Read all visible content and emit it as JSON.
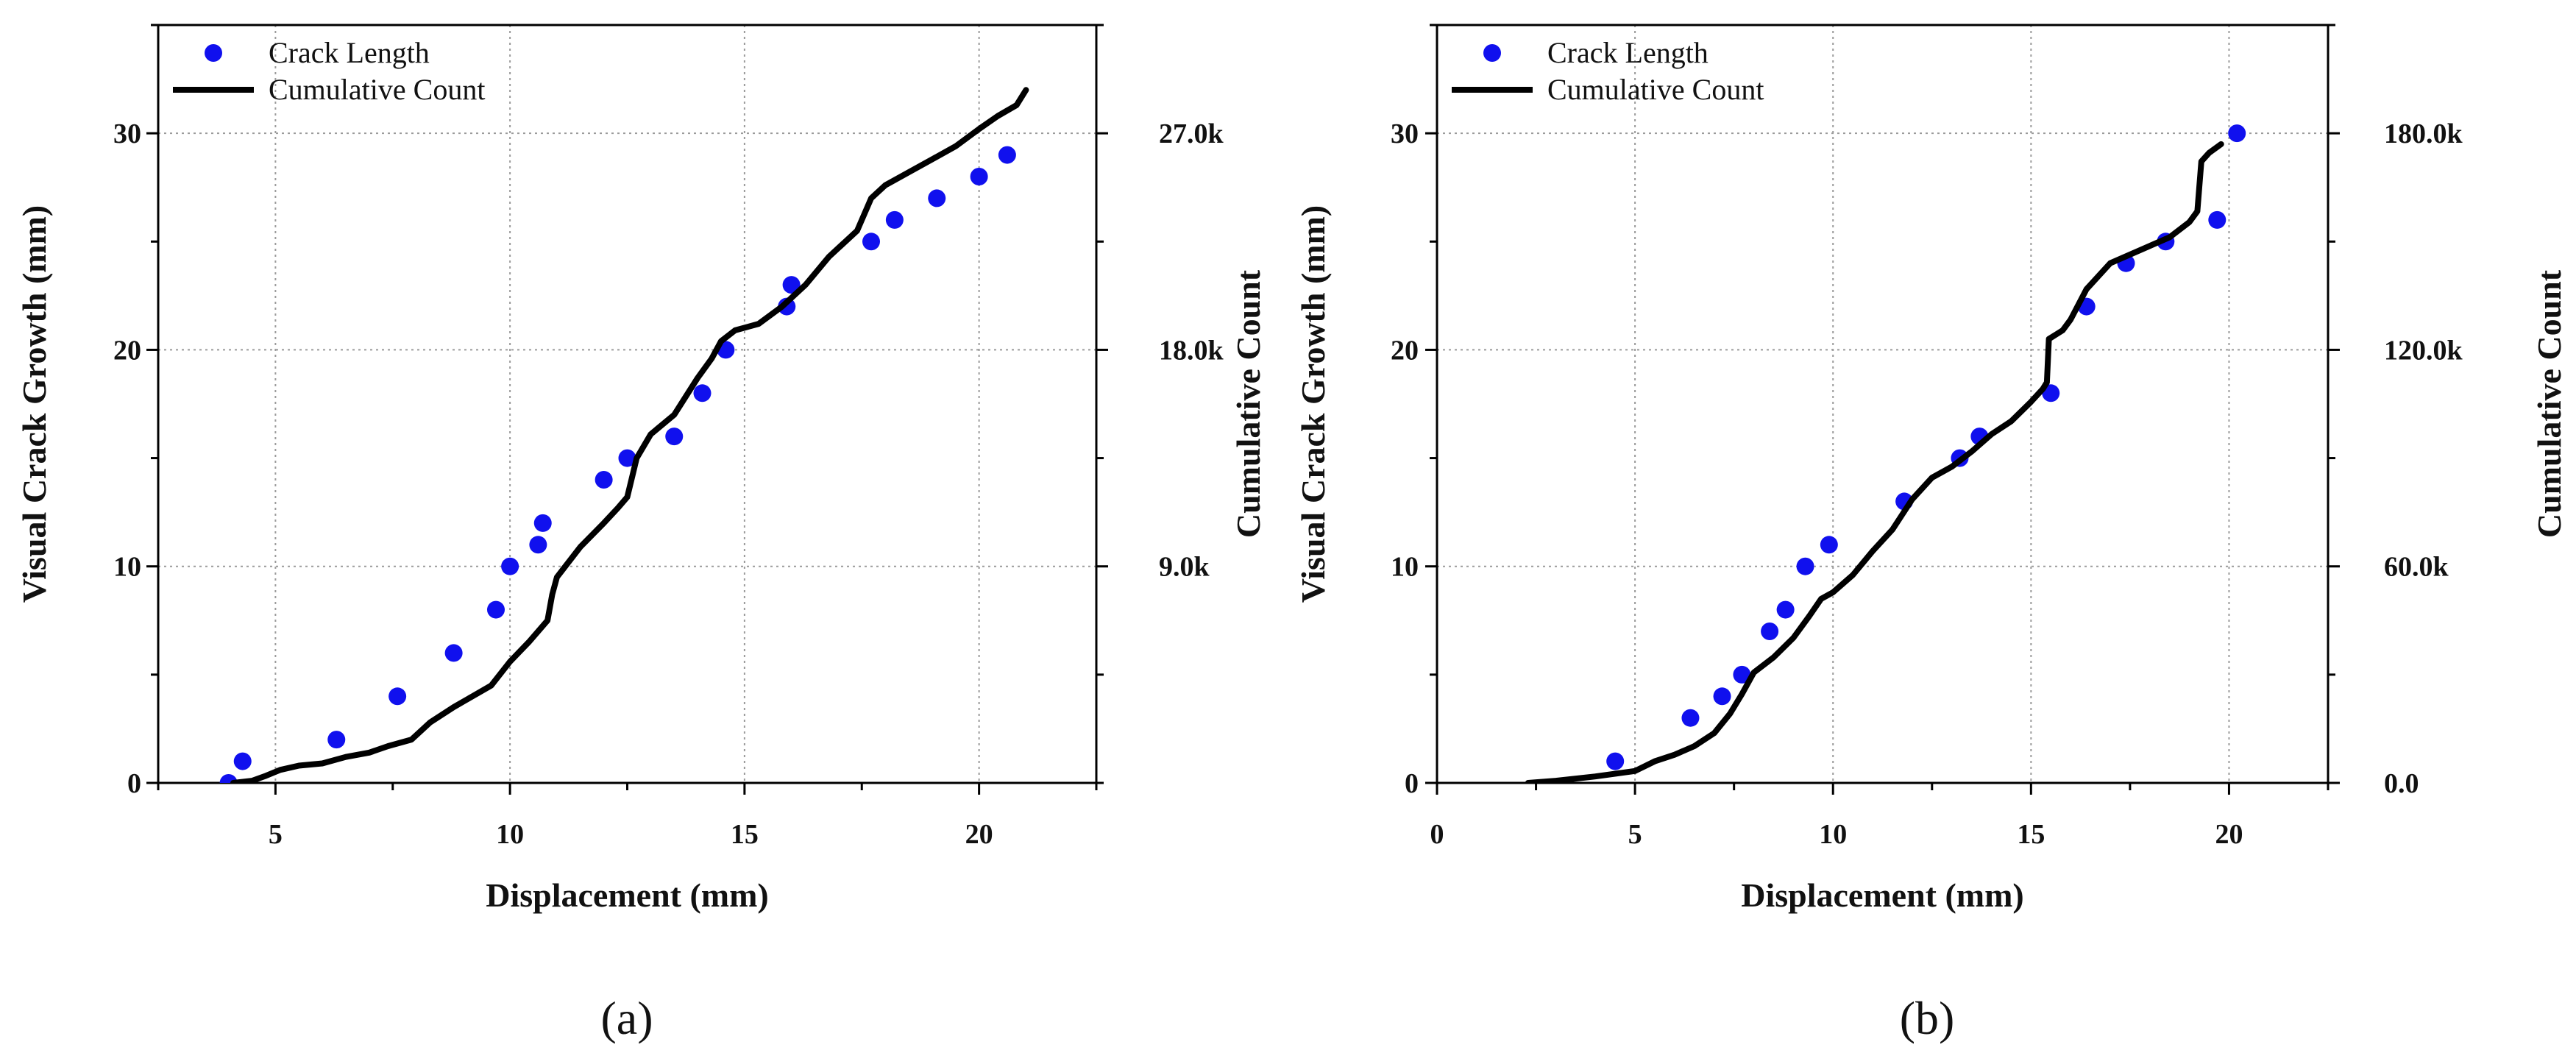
{
  "chart_data": [
    {
      "type": "scatter+line",
      "panel_label": "(a)",
      "xlabel": "Displacement (mm)",
      "ylabel": "Visual Crack Growth (mm)",
      "y2label": "Cumulative Count",
      "xlim": [
        2.5,
        22.5
      ],
      "ylim": [
        0,
        35
      ],
      "y2lim": [
        0,
        31500
      ],
      "xticks": [
        5,
        10,
        15,
        20
      ],
      "yticks": [
        0,
        10,
        20,
        30
      ],
      "y2ticks": [
        9000,
        18000,
        27000
      ],
      "y2tick_labels": [
        "9.0k",
        "18.0k",
        "27.0k"
      ],
      "grid": true,
      "legend_position": "top-left",
      "legend": [
        "Crack Length",
        "Cumulative Count"
      ],
      "series": [
        {
          "name": "Crack Length",
          "style": "scatter",
          "color": "#1010ee",
          "axis": "left",
          "x": [
            4.0,
            4.3,
            6.3,
            7.6,
            8.8,
            9.7,
            10.0,
            10.6,
            10.7,
            12.0,
            12.5,
            13.5,
            14.1,
            14.6,
            15.9,
            16.0,
            17.7,
            18.2,
            19.1,
            20.0,
            20.6
          ],
          "y": [
            0,
            1,
            2,
            4,
            6,
            8,
            10,
            11,
            12,
            14,
            15,
            16,
            18,
            20,
            22,
            23,
            25,
            26,
            27,
            28,
            29
          ]
        },
        {
          "name": "Cumulative Count",
          "style": "line",
          "color": "#000000",
          "axis": "right",
          "x": [
            4.1,
            4.5,
            4.8,
            5.1,
            5.5,
            6.0,
            6.5,
            7.0,
            7.4,
            7.9,
            8.3,
            8.8,
            9.2,
            9.6,
            10.0,
            10.4,
            10.8,
            10.9,
            11.0,
            11.5,
            12.0,
            12.3,
            12.5,
            12.7,
            13.0,
            13.5,
            14.0,
            14.3,
            14.5,
            14.8,
            15.3,
            15.8,
            16.3,
            16.8,
            17.4,
            17.7,
            18.0,
            18.5,
            19.0,
            19.5,
            20.0,
            20.4,
            20.8,
            21.0
          ],
          "y": [
            0,
            90,
            300,
            540,
            720,
            810,
            1080,
            1260,
            1530,
            1800,
            2520,
            3150,
            3600,
            4050,
            5040,
            5850,
            6750,
            7830,
            8550,
            9810,
            10800,
            11430,
            11880,
            13500,
            14490,
            15300,
            16830,
            17640,
            18360,
            18810,
            19080,
            19800,
            20700,
            21870,
            22950,
            24300,
            24840,
            25380,
            25920,
            26460,
            27180,
            27720,
            28170,
            28800
          ]
        }
      ]
    },
    {
      "type": "scatter+line",
      "panel_label": "(b)",
      "xlabel": "Displacement (mm)",
      "ylabel": "Visual Crack Growth (mm)",
      "y2label": "Cumulative Count",
      "xlim": [
        0,
        22.5
      ],
      "ylim": [
        0,
        35
      ],
      "y2lim": [
        0,
        210000
      ],
      "xticks": [
        0,
        5,
        10,
        15,
        20
      ],
      "yticks": [
        0,
        10,
        20,
        30
      ],
      "y2ticks": [
        0,
        60000,
        120000,
        180000
      ],
      "y2tick_labels": [
        "0.0",
        "60.0k",
        "120.0k",
        "180.0k"
      ],
      "grid": true,
      "legend_position": "top-left",
      "legend": [
        "Crack Length",
        "Cumulative Count"
      ],
      "series": [
        {
          "name": "Crack Length",
          "style": "scatter",
          "color": "#1010ee",
          "axis": "left",
          "x": [
            4.5,
            6.4,
            7.2,
            7.7,
            8.4,
            8.8,
            9.3,
            9.9,
            11.8,
            13.2,
            13.7,
            15.5,
            16.4,
            17.4,
            18.4,
            19.7,
            20.2
          ],
          "y": [
            1,
            3,
            4,
            5,
            7,
            8,
            10,
            11,
            13,
            15,
            16,
            18,
            22,
            24,
            25,
            26,
            30
          ]
        },
        {
          "name": "Cumulative Count",
          "style": "line",
          "color": "#000000",
          "axis": "right",
          "x": [
            2.3,
            3.0,
            4.0,
            5.0,
            5.5,
            6.0,
            6.5,
            7.0,
            7.4,
            7.7,
            8.0,
            8.5,
            9.0,
            9.4,
            9.7,
            10.0,
            10.5,
            11.0,
            11.5,
            12.0,
            12.5,
            13.0,
            13.5,
            14.0,
            14.5,
            15.0,
            15.3,
            15.4,
            15.45,
            15.8,
            16.0,
            16.4,
            17.0,
            17.5,
            18.0,
            18.5,
            19.0,
            19.2,
            19.3,
            19.5,
            19.8
          ],
          "y": [
            0,
            600,
            1800,
            3300,
            6000,
            7800,
            10200,
            13800,
            19200,
            24600,
            30600,
            34800,
            40200,
            46200,
            51000,
            52800,
            57600,
            64200,
            70200,
            78600,
            84600,
            87600,
            91800,
            96600,
            100200,
            105600,
            109200,
            111000,
            123000,
            125400,
            128400,
            136800,
            144000,
            146400,
            148800,
            151200,
            155400,
            158400,
            172200,
            174600,
            177000
          ]
        }
      ]
    }
  ]
}
